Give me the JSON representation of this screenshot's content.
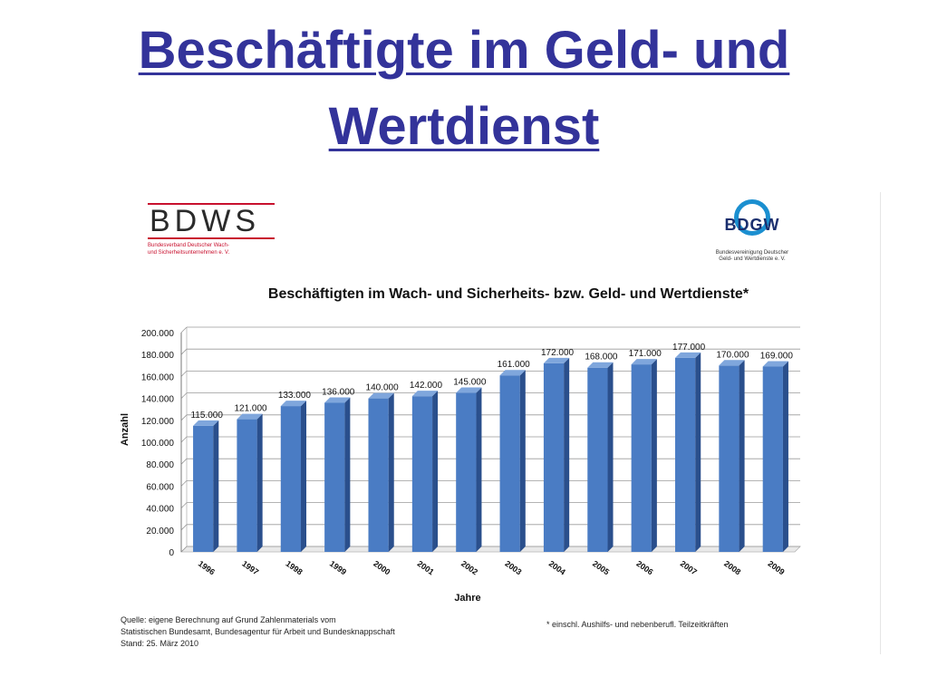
{
  "slide": {
    "title_line1": "Beschäftigte im Geld- und",
    "title_line2": "Wertdienst"
  },
  "logos": {
    "left": {
      "name": "BDWS",
      "subtitle_line1": "Bundesverband Deutscher Wach-",
      "subtitle_line2": "und Sicherheitsunternehmen e. V."
    },
    "right": {
      "name": "BDGW",
      "subtitle_line1": "Bundesvereinigung Deutscher",
      "subtitle_line2": "Geld- und Wertdienste e. V."
    }
  },
  "chart_data": {
    "type": "bar",
    "title": "Beschäftigten im Wach- und Sicherheits- bzw. Geld- und Wertdienste*",
    "xlabel": "Jahre",
    "ylabel": "Anzahl",
    "categories": [
      "1996",
      "1997",
      "1998",
      "1999",
      "2000",
      "2001",
      "2002",
      "2003",
      "2004",
      "2005",
      "2006",
      "2007",
      "2008",
      "2009"
    ],
    "values": [
      115000,
      121000,
      133000,
      136000,
      140000,
      142000,
      145000,
      161000,
      172000,
      168000,
      171000,
      177000,
      170000,
      169000
    ],
    "value_labels": [
      "115.000",
      "121.000",
      "133.000",
      "136.000",
      "140.000",
      "142.000",
      "145.000",
      "161.000",
      "172.000",
      "168.000",
      "171.000",
      "177.000",
      "170.000",
      "169.000"
    ],
    "ylim": [
      0,
      200000
    ],
    "yticks": [
      0,
      20000,
      40000,
      60000,
      80000,
      100000,
      120000,
      140000,
      160000,
      180000,
      200000
    ],
    "ytick_labels": [
      "0",
      "20.000",
      "40.000",
      "60.000",
      "80.000",
      "100.000",
      "120.000",
      "140.000",
      "160.000",
      "180.000",
      "200.000"
    ],
    "grid": true,
    "bar_color": "#4a7cc4",
    "bar_side_color": "#2a4f8c",
    "bar_top_color": "#7fa6dc"
  },
  "footnotes": {
    "source_line1": "Quelle: eigene Berechnung auf Grund Zahlenmaterials vom",
    "source_line2": "Statistischen Bundesamt, Bundesagentur für Arbeit und Bundesknappschaft",
    "source_line3": "Stand: 25. März 2010",
    "asterisk": "* einschl. Aushilfs- und nebenberufl. Teilzeitkräften"
  }
}
